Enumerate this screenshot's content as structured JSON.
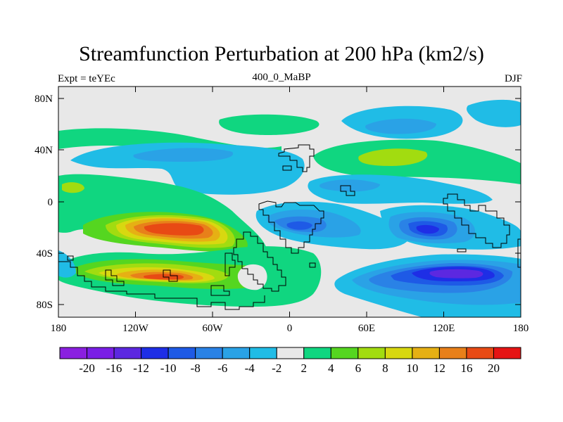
{
  "map": {
    "title": "Streamfunction Perturbation at 200 hPa (km2/s)",
    "left_string": "Expt = teYEc",
    "center_string": "400_0_MaBP",
    "right_string": "DJF",
    "lat_labels": [
      "80N",
      "40N",
      "0",
      "40S",
      "80S"
    ],
    "lon_labels": [
      "180",
      "120W",
      "60W",
      "0",
      "60E",
      "120E",
      "180"
    ]
  },
  "colorbar": {
    "colors": [
      "#8a1fe0",
      "#7a1ee6",
      "#5c28e0",
      "#1e2ee6",
      "#1e5ae6",
      "#2a82e6",
      "#2aa2e6",
      "#20bce6",
      "#e8e8e8",
      "#10d680",
      "#55d620",
      "#a2dc10",
      "#d8d810",
      "#e6b014",
      "#e8801a",
      "#e84a14",
      "#e61414"
    ],
    "labels": [
      "-20",
      "-16",
      "-12",
      "-10",
      "-8",
      "-6",
      "-4",
      "-2",
      "2",
      "4",
      "6",
      "8",
      "10",
      "12",
      "16",
      "20"
    ]
  },
  "palette": {
    "neutral": "#e8e8e8",
    "green": "#10d680",
    "light_green": "#55d620",
    "yellow_green": "#a2dc10",
    "yellow": "#d8d810",
    "orange": "#e6b014",
    "dark_orange": "#e8801a",
    "red_orange": "#e84a14",
    "cyan": "#20bce6",
    "sky": "#2aa2e6",
    "blue": "#2a82e6",
    "mid_blue": "#1e5ae6",
    "deep_blue": "#1e2ee6",
    "indigo": "#5c28e0"
  }
}
